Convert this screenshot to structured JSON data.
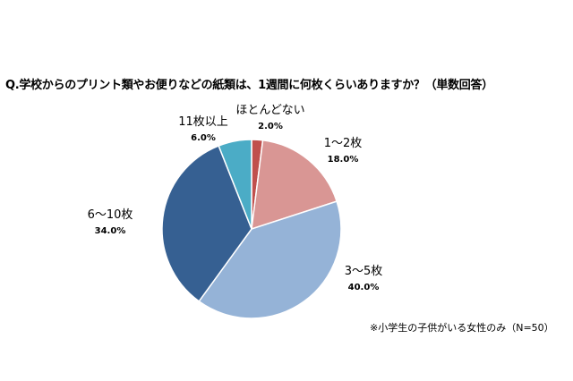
{
  "chart_data": {
    "type": "pie",
    "title": "Q.学校からのプリント類やお便りなどの紙類は、1週間に何枚くらいありますか？（単数回答）",
    "note": "※小学生の子供がいる女性のみ（N=50）",
    "slices": [
      {
        "label": "ほとんどない",
        "value": 2.0,
        "display": "2.0%",
        "color": "#c0504d"
      },
      {
        "label": "1～2枚",
        "value": 18.0,
        "display": "18.0%",
        "color": "#d99694"
      },
      {
        "label": "3～5枚",
        "value": 40.0,
        "display": "40.0%",
        "color": "#95b3d7"
      },
      {
        "label": "6～10枚",
        "value": 34.0,
        "display": "34.0%",
        "color": "#366092"
      },
      {
        "label": "11枚以上",
        "value": 6.0,
        "display": "6.0%",
        "color": "#4bacc6"
      }
    ]
  }
}
